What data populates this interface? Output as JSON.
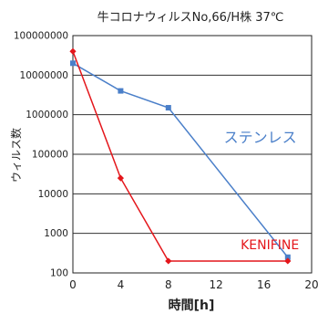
{
  "chart_data": {
    "type": "line",
    "title": "牛コロナウィルスNo,66/H株  37℃",
    "xlabel": "時間[h]",
    "ylabel": "ウィルス数",
    "y_scale": "log",
    "xlim": [
      0,
      20
    ],
    "ylim": [
      100,
      100000000
    ],
    "x_ticks": [
      "0",
      "4",
      "8",
      "12",
      "16",
      "20"
    ],
    "y_ticks": [
      "100",
      "1000",
      "10000",
      "100000",
      "1000000",
      "10000000",
      "100000000"
    ],
    "grid": "horizontal",
    "series": [
      {
        "name": "ステンレス",
        "color": "#4a7fc9",
        "marker": "square",
        "x": [
          0,
          4,
          8,
          18
        ],
        "y": [
          20000000,
          4000000,
          1500000,
          250
        ]
      },
      {
        "name": "KENIFINE",
        "color": "#e4161b",
        "marker": "diamond",
        "x": [
          0,
          4,
          8,
          18
        ],
        "y": [
          40000000,
          25000,
          200,
          200
        ]
      }
    ]
  }
}
